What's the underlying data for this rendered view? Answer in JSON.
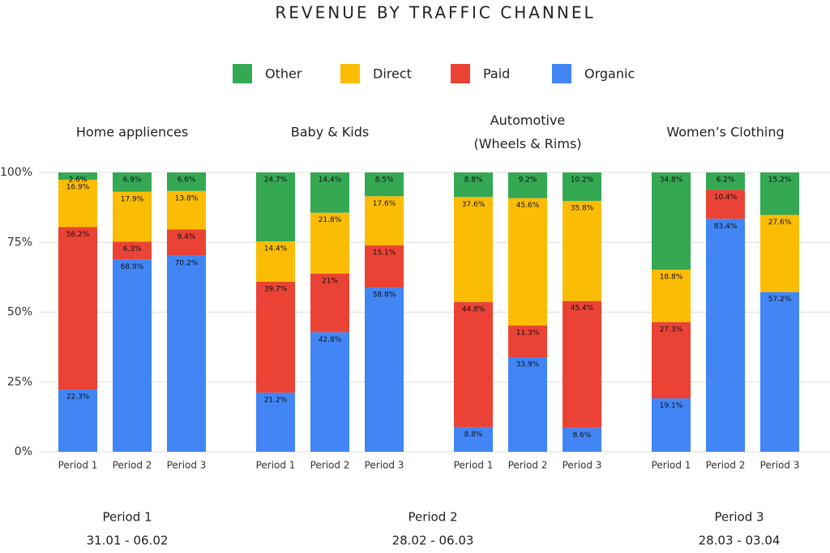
{
  "chart_data": {
    "type": "stacked_bar",
    "title": "REVENUE BY TRAFFIC CHANNEL",
    "groups": [
      [
        "Home appliences"
      ],
      [
        "Baby & Kids"
      ],
      [
        "Automotive",
        "(Wheels & Rims)"
      ],
      [
        "Women’s Clothing"
      ]
    ],
    "categories": [
      "Period 1",
      "Period 2",
      "Period 3",
      "Period 1",
      "Period 2",
      "Period 3",
      "Period 1",
      "Period 2",
      "Period 3",
      "Period 1",
      "Period 2",
      "Period 3"
    ],
    "series": [
      {
        "name": "Organic",
        "color": "#4285f4",
        "values": [
          22.3,
          68.9,
          70.2,
          21.2,
          42.8,
          58.8,
          8.8,
          33.9,
          8.6,
          19.1,
          83.4,
          57.2
        ],
        "value_labels": [
          "22.3%",
          "68.9%",
          "70.2%",
          "21.2%",
          "42.8%",
          "58.8%",
          "8.8%",
          "33.9%",
          "8.6%",
          "19.1%",
          "83.4%",
          "57.2%"
        ]
      },
      {
        "name": "Paid",
        "color": "#ea4335",
        "values": [
          58.2,
          6.3,
          9.4,
          39.7,
          21,
          15.1,
          44.8,
          11.3,
          45.4,
          27.3,
          10.4,
          null
        ],
        "value_labels": [
          "58.2%",
          "6.3%",
          "9.4%",
          "39.7%",
          "21%",
          "15.1%",
          "44.8%",
          "11.3%",
          "45.4%",
          "27.3%",
          "10.4%",
          null
        ]
      },
      {
        "name": "Direct",
        "color": "#fbbc04",
        "values": [
          16.9,
          17.9,
          13.8,
          14.4,
          21.8,
          17.6,
          37.6,
          45.6,
          35.8,
          18.8,
          null,
          27.6
        ],
        "value_labels": [
          "16.9%",
          "17.9%",
          "13.8%",
          "14.4%",
          "21.8%",
          "17.6%",
          "37.6%",
          "45.6%",
          "35.8%",
          "18.8%",
          null,
          "27.6%"
        ]
      },
      {
        "name": "Other",
        "color": "#34a853",
        "values": [
          2.6,
          6.9,
          6.6,
          24.7,
          14.4,
          8.5,
          8.8,
          9.2,
          10.2,
          34.8,
          6.2,
          15.2
        ],
        "value_labels": [
          "2.6%",
          "6.9%",
          "6.6%",
          "24.7%",
          "14.4%",
          "8.5%",
          "8.8%",
          "9.2%",
          "10.2%",
          "34.8%",
          "6.2%",
          "15.2%"
        ]
      }
    ],
    "ylim": [
      0,
      100
    ],
    "yticks": [
      {
        "value": 0,
        "label": "0%"
      },
      {
        "value": 25,
        "label": "25%"
      },
      {
        "value": 50,
        "label": "50%"
      },
      {
        "value": 75,
        "label": "75%"
      },
      {
        "value": 100,
        "label": "100%"
      }
    ],
    "grid": true,
    "legend": "top",
    "footer": [
      {
        "label": "Period 1",
        "dates": "31.01 - 06.02"
      },
      {
        "label": "Period 2",
        "dates": "28.02 - 06.03"
      },
      {
        "label": "Period 3",
        "dates": "28.03 - 03.04"
      }
    ]
  }
}
